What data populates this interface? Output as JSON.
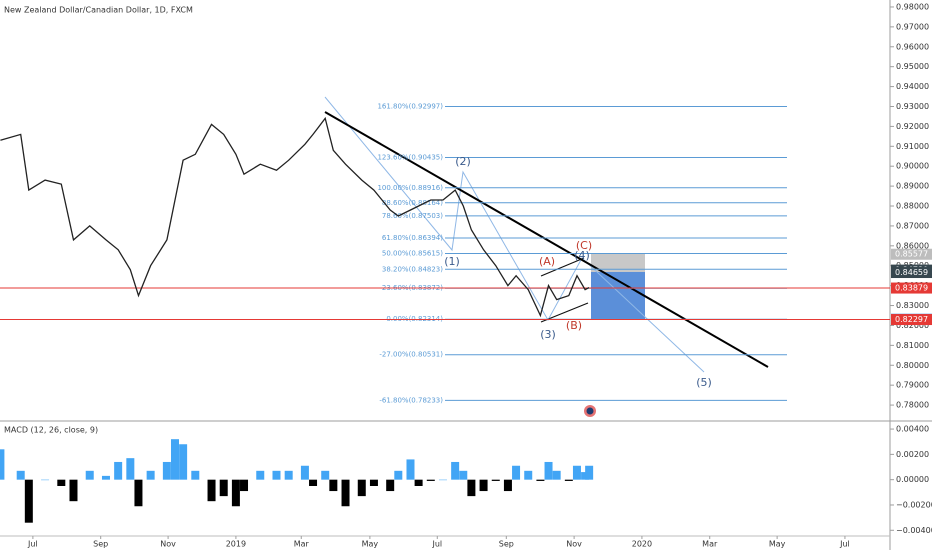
{
  "title": "New Zealand Dollar/Canadian Dollar, 1D, FXCM",
  "chart_data": [
    {
      "type": "line",
      "color": "#222222",
      "xlim": [
        2018.419,
        2020.611
      ],
      "ylim": [
        0.7725,
        0.9835
      ],
      "xticks": [
        {
          "value": 2018.5,
          "label": "Jul"
        },
        {
          "value": 2018.667,
          "label": "Sep"
        },
        {
          "value": 2018.833,
          "label": "Nov"
        },
        2019,
        {
          "value": 2019.161,
          "label": "Mar"
        },
        {
          "value": 2019.33,
          "label": "May"
        },
        {
          "value": 2019.496,
          "label": "Jul"
        },
        {
          "value": 2019.666,
          "label": "Sep"
        },
        {
          "value": 2019.833,
          "label": "Nov"
        },
        2020,
        {
          "value": 2020.167,
          "label": "Mar"
        },
        {
          "value": 2020.333,
          "label": "May"
        },
        {
          "value": 2020.5,
          "label": "Jul"
        }
      ],
      "yticks": [
        {
          "value": 0.98,
          "label": "0.98000"
        },
        {
          "value": 0.97,
          "label": "0.97000"
        },
        {
          "value": 0.96,
          "label": "0.96000"
        },
        {
          "value": 0.95,
          "label": "0.95000"
        },
        {
          "value": 0.94,
          "label": "0.94000"
        },
        {
          "value": 0.93,
          "label": "0.93000"
        },
        {
          "value": 0.92,
          "label": "0.92000"
        },
        {
          "value": 0.91,
          "label": "0.91000"
        },
        {
          "value": 0.9,
          "label": "0.90000"
        },
        {
          "value": 0.89,
          "label": "0.89000"
        },
        {
          "value": 0.88,
          "label": "0.88000"
        },
        {
          "value": 0.87,
          "label": "0.87000"
        },
        {
          "value": 0.86,
          "label": "0.86000"
        },
        {
          "value": 0.85,
          "label": "0.85000"
        },
        {
          "value": 0.84,
          "label": "0.84000"
        },
        {
          "value": 0.83,
          "label": "0.83000"
        },
        {
          "value": 0.82,
          "label": "0.82000"
        },
        {
          "value": 0.81,
          "label": "0.81000"
        },
        {
          "value": 0.8,
          "label": "0.80000"
        },
        {
          "value": 0.79,
          "label": "0.79000"
        },
        {
          "value": 0.78,
          "label": "0.78000"
        }
      ],
      "x": [
        2018.42,
        2018.47,
        2018.49,
        2018.53,
        2018.57,
        2018.6,
        2018.64,
        2018.68,
        2018.71,
        2018.74,
        2018.76,
        2018.79,
        2018.83,
        2018.85,
        2018.87,
        2018.9,
        2018.94,
        2018.97,
        2019.0,
        2019.02,
        2019.06,
        2019.1,
        2019.13,
        2019.17,
        2019.19,
        2019.22,
        2019.24,
        2019.27,
        2019.31,
        2019.34,
        2019.38,
        2019.4,
        2019.43,
        2019.45,
        2019.48,
        2019.51,
        2019.54,
        2019.56,
        2019.58,
        2019.61,
        2019.64,
        2019.67,
        2019.69,
        2019.72,
        2019.75,
        2019.77,
        2019.79,
        2019.82,
        2019.84,
        2019.86,
        2019.87
      ],
      "values": [
        0.913,
        0.916,
        0.888,
        0.893,
        0.891,
        0.863,
        0.87,
        0.863,
        0.858,
        0.848,
        0.835,
        0.85,
        0.863,
        0.883,
        0.903,
        0.906,
        0.921,
        0.916,
        0.906,
        0.896,
        0.901,
        0.898,
        0.903,
        0.911,
        0.916,
        0.924,
        0.908,
        0.901,
        0.893,
        0.888,
        0.878,
        0.875,
        0.878,
        0.88,
        0.883,
        0.883,
        0.888,
        0.88,
        0.868,
        0.858,
        0.85,
        0.84,
        0.845,
        0.838,
        0.825,
        0.84,
        0.833,
        0.835,
        0.845,
        0.838,
        0.839
      ],
      "fib_levels": [
        {
          "value": 0.92997,
          "label": "161.80%(0.92997)"
        },
        {
          "value": 0.90435,
          "label": "123.60%(0.90435)"
        },
        {
          "value": 0.88916,
          "label": "100.00%(0.88916)"
        },
        {
          "value": 0.88164,
          "label": "88.60%(0.88164)"
        },
        {
          "value": 0.87503,
          "label": "78.60%(0.87503)"
        },
        {
          "value": 0.86394,
          "label": "61.80%(0.86394)"
        },
        {
          "value": 0.85615,
          "label": "50.00%(0.85615)"
        },
        {
          "value": 0.84823,
          "label": "38.20%(0.84823)"
        },
        {
          "value": 0.83872,
          "label": "23.60%(0.83872)"
        },
        {
          "value": 0.82314,
          "label": "0.00%(0.82314)"
        },
        {
          "value": 0.80531,
          "label": "-27.00%(0.80531)"
        },
        {
          "value": 0.78233,
          "label": "-61.80%(0.78233)"
        }
      ],
      "horizontal_lines": [
        {
          "value": 0.83879,
          "color": "#e53935"
        },
        {
          "value": 0.82297,
          "color": "#e53935"
        }
      ],
      "price_labels": [
        {
          "value": 0.85577,
          "label": "0.85577",
          "color": "#bdbdbd"
        },
        {
          "value": 0.8478,
          "label": "0.84780",
          "color": "#37474f"
        },
        {
          "value": 0.84659,
          "label": "0.84659",
          "color": "#37474f"
        },
        {
          "value": 0.83879,
          "label": "0.83879",
          "color": "#e53935"
        },
        {
          "value": 0.8231,
          "label": "0.82310",
          "color": "#1e6fd0"
        },
        {
          "value": 0.82297,
          "label": "0.82297",
          "color": "#e53935"
        }
      ],
      "annotations": [
        "(1)",
        "(2)",
        "(3)",
        "(4)",
        "(5)",
        "(A)",
        "(B)",
        "(C)"
      ]
    },
    {
      "type": "histogram",
      "title": "MACD (12, 26, close, 9)",
      "positive_color": "#42a5f5",
      "negative_color": "#000000",
      "ylim": [
        -0.0054,
        0.0044
      ],
      "yticks": [
        {
          "value": 0.004,
          "label": "0.00400"
        },
        {
          "value": 0.002,
          "label": "0.00200"
        },
        {
          "value": 0,
          "label": "0.00000"
        },
        {
          "value": -0.002,
          "label": "−0.00200"
        },
        {
          "value": -0.004,
          "label": "−0.00400"
        }
      ],
      "x": [
        2018.42,
        2018.47,
        2018.49,
        2018.53,
        2018.57,
        2018.6,
        2018.64,
        2018.68,
        2018.71,
        2018.74,
        2018.76,
        2018.79,
        2018.83,
        2018.85,
        2018.87,
        2018.9,
        2018.94,
        2018.97,
        2019.0,
        2019.02,
        2019.06,
        2019.1,
        2019.13,
        2019.17,
        2019.19,
        2019.22,
        2019.24,
        2019.27,
        2019.31,
        2019.34,
        2019.38,
        2019.4,
        2019.43,
        2019.45,
        2019.48,
        2019.51,
        2019.54,
        2019.56,
        2019.58,
        2019.61,
        2019.64,
        2019.67,
        2019.69,
        2019.72,
        2019.75,
        2019.77,
        2019.79,
        2019.82,
        2019.84,
        2019.86,
        2019.87
      ],
      "values": [
        0.0024,
        0.0007,
        -0.0034,
        0,
        -0.0005,
        -0.0017,
        0.0007,
        0.0003,
        0.0014,
        0.0017,
        -0.0021,
        0.0007,
        0.0014,
        0.0032,
        0.0028,
        0.0007,
        -0.0017,
        -0.0013,
        -0.0021,
        -0.0009,
        0.0007,
        0.0007,
        0.0007,
        0.0011,
        -0.0005,
        0.0007,
        -0.0009,
        -0.0021,
        -0.0013,
        -0.0005,
        -0.0009,
        0.0007,
        0.0016,
        -0.0005,
        -0.0001,
        0,
        0.0014,
        0.0007,
        -0.0013,
        -0.0009,
        -0.0001,
        -0.0009,
        0.0011,
        0.0007,
        -0.0001,
        0.0014,
        0.0007,
        -0.0001,
        0.0011,
        0.0006,
        0.0011
      ]
    }
  ]
}
